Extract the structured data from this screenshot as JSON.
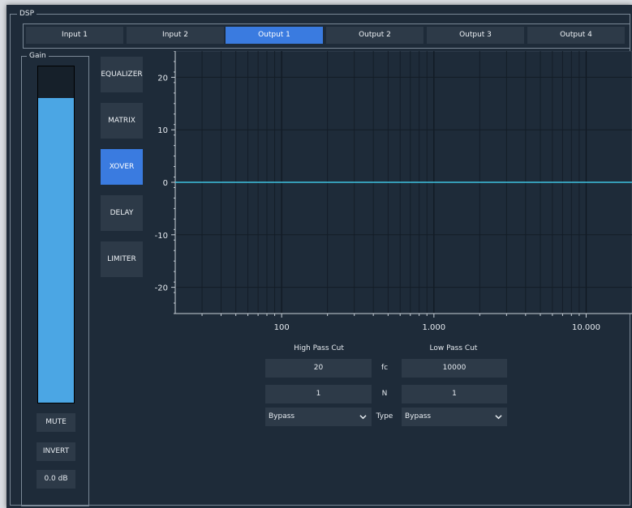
{
  "dsp": {
    "title": "DSP"
  },
  "tabs": [
    {
      "label": "Input 1",
      "active": false
    },
    {
      "label": "Input 2",
      "active": false
    },
    {
      "label": "Output 1",
      "active": true
    },
    {
      "label": "Output 2",
      "active": false
    },
    {
      "label": "Output 3",
      "active": false
    },
    {
      "label": "Output 4",
      "active": false
    }
  ],
  "gain": {
    "title": "Gain",
    "level_fraction": 0.905,
    "mute_label": "MUTE",
    "invert_label": "INVERT",
    "value_label": "0.0 dB"
  },
  "modes": [
    {
      "label": "EQUALIZER",
      "active": false
    },
    {
      "label": "MATRIX",
      "active": false
    },
    {
      "label": "XOVER",
      "active": true
    },
    {
      "label": "DELAY",
      "active": false
    },
    {
      "label": "LIMITER",
      "active": false
    }
  ],
  "chart_data": {
    "type": "line",
    "x_scale": "log",
    "xlim": [
      20,
      20000
    ],
    "ylim": [
      -25,
      25
    ],
    "x_ticks": [
      {
        "value": 100,
        "label": "100"
      },
      {
        "value": 1000,
        "label": "1.000"
      },
      {
        "value": 10000,
        "label": "10.000"
      }
    ],
    "y_ticks": [
      20,
      10,
      0,
      -10,
      -20
    ],
    "grid": true,
    "series": [
      {
        "x": [
          20,
          100,
          1000,
          10000,
          20000
        ],
        "y": [
          0,
          0,
          0,
          0,
          0
        ],
        "color": "#3fc1e0"
      }
    ]
  },
  "xover": {
    "high_pass_label": "High Pass Cut",
    "low_pass_label": "Low Pass Cut",
    "fc_label": "fc",
    "n_label": "N",
    "type_label": "Type",
    "high_pass": {
      "fc": "20",
      "n": "1",
      "type": "Bypass"
    },
    "low_pass": {
      "fc": "10000",
      "n": "1",
      "type": "Bypass"
    }
  },
  "colors": {
    "panel_bg": "#1e2b39",
    "button_bg": "#2d3a48",
    "accent": "#3a7be0",
    "meter": "#4ba6e4",
    "curve": "#3fc1e0"
  }
}
